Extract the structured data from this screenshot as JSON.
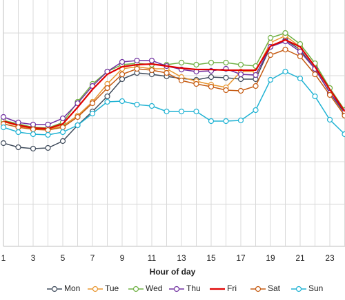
{
  "chart_data": {
    "type": "line",
    "x_label": "Hour of day",
    "categories": [
      1,
      null,
      3,
      null,
      5,
      null,
      7,
      null,
      9,
      null,
      11,
      null,
      13,
      null,
      15,
      null,
      17,
      null,
      19,
      null,
      21,
      null,
      23,
      null
    ],
    "ylim": [
      0,
      358
    ],
    "series": [
      {
        "name": "Mon",
        "color": "#3f4b5b",
        "marker": true,
        "values": [
          150,
          144,
          142,
          143,
          153,
          176,
          196,
          218,
          243,
          252,
          250,
          247,
          244,
          242,
          246,
          245,
          243,
          243,
          290,
          300,
          286,
          258,
          223,
          193
        ]
      },
      {
        "name": "Tue",
        "color": "#e8962f",
        "marker": true,
        "values": [
          181,
          175,
          171,
          170,
          175,
          190,
          210,
          236,
          258,
          261,
          258,
          258,
          246,
          240,
          235,
          231,
          254,
          254,
          296,
          306,
          290,
          262,
          230,
          198
        ]
      },
      {
        "name": "Wed",
        "color": "#6fb043",
        "marker": true,
        "values": [
          183,
          178,
          173,
          172,
          180,
          210,
          236,
          254,
          264,
          266,
          264,
          264,
          267,
          264,
          267,
          267,
          264,
          262,
          303,
          310,
          294,
          266,
          230,
          198
        ]
      },
      {
        "name": "Thu",
        "color": "#7030a0",
        "marker": true,
        "values": [
          188,
          180,
          177,
          177,
          186,
          208,
          233,
          254,
          268,
          270,
          270,
          262,
          257,
          254,
          255,
          258,
          250,
          249,
          290,
          298,
          283,
          258,
          223,
          196
        ]
      },
      {
        "name": "Fri",
        "color": "#e00000",
        "marker": false,
        "values": [
          182,
          176,
          172,
          171,
          178,
          202,
          228,
          250,
          261,
          264,
          265,
          262,
          259,
          257,
          257,
          256,
          256,
          256,
          291,
          300,
          290,
          261,
          228,
          196
        ]
      },
      {
        "name": "Sat",
        "color": "#c55a11",
        "marker": true,
        "values": [
          178,
          173,
          170,
          169,
          173,
          188,
          208,
          230,
          250,
          258,
          256,
          252,
          241,
          236,
          232,
          227,
          226,
          233,
          278,
          286,
          276,
          250,
          220,
          190
        ]
      },
      {
        "name": "Sun",
        "color": "#1fb2d3",
        "marker": true,
        "values": [
          173,
          166,
          163,
          162,
          166,
          176,
          193,
          210,
          211,
          206,
          204,
          196,
          196,
          196,
          182,
          182,
          183,
          198,
          242,
          254,
          244,
          218,
          184,
          163
        ]
      }
    ]
  }
}
